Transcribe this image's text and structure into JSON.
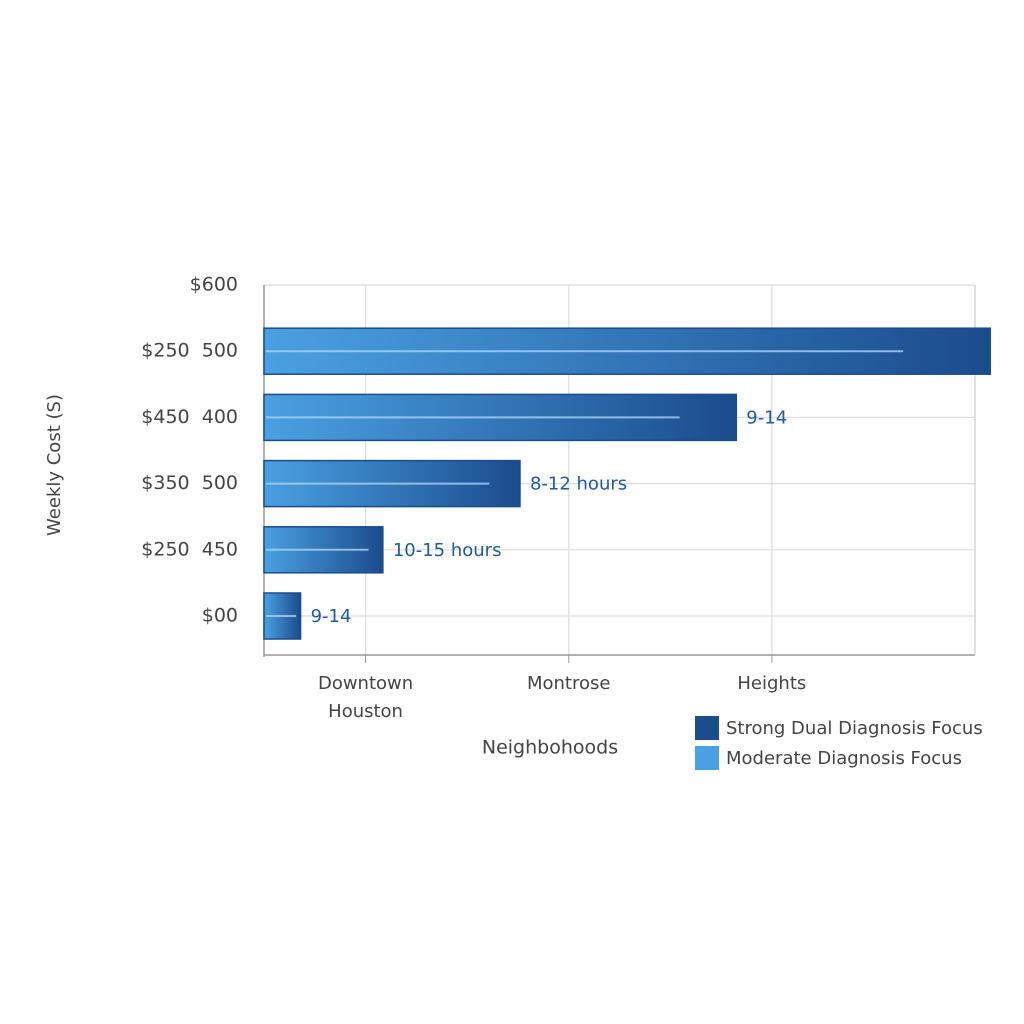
{
  "chart_data": {
    "type": "hbar",
    "ylabel": "Weekly Cost (S)",
    "xlabel": "Neighbohoods",
    "categories": [
      "$600",
      "$250  500",
      "$450  400",
      "$350  500",
      "$250  450",
      "$00"
    ],
    "values": [
      null,
      7.15,
      4.65,
      2.52,
      1.17,
      0.36
    ],
    "bar_labels": [
      null,
      null,
      "9-14",
      "8-12 hours",
      "10-15 hours",
      "9-14"
    ],
    "xlim": [
      0,
      7
    ],
    "xticks": [
      {
        "value": 1,
        "label": "Downtown Houston"
      },
      {
        "value": 3,
        "label": "Montrose"
      },
      {
        "value": 5,
        "label": "Heights"
      }
    ],
    "grid": true,
    "legend": [
      {
        "name": "Strong Dual Diagnosis Focus",
        "color": "#1b4c8c"
      },
      {
        "name": "Moderate Diagnosis Focus",
        "color": "#4aa0e2"
      }
    ],
    "legend_position": "bottom-right"
  }
}
